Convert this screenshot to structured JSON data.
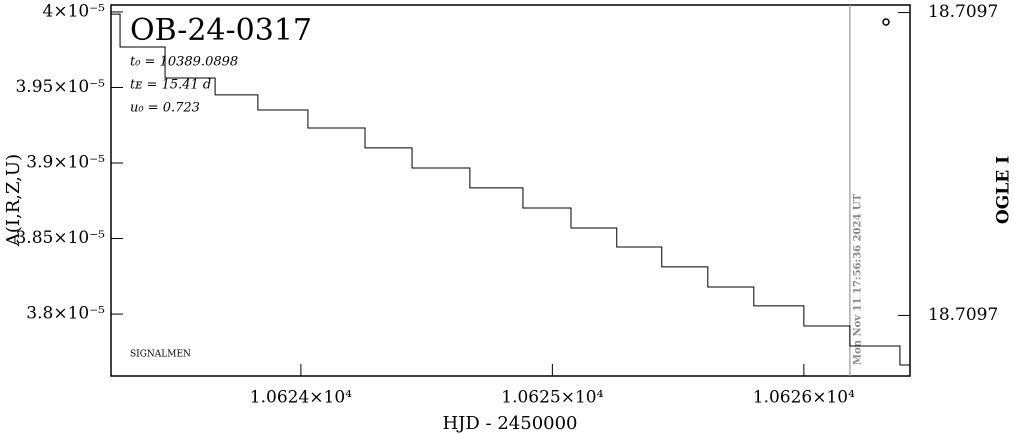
{
  "chart_data": {
    "type": "step",
    "title": "OB-24-0317",
    "annotations": [
      "t₀ = 10389.0898",
      "tᴇ = 15.41 d",
      "u₀ = 0.723"
    ],
    "footer": "SIGNALMEN",
    "xlabel": "HJD - 2450000",
    "ylabel": "A(I,R,Z,U)",
    "y2label": "OGLE I",
    "now_x": 10626.183,
    "now_label": "Mon Nov 11 17:56:36 2024 UT",
    "xlim": [
      10623.245,
      10626.422
    ],
    "xticks": [
      {
        "value": 10624,
        "label": "1.0624×10⁴"
      },
      {
        "value": 10625,
        "label": "1.0625×10⁴"
      },
      {
        "value": 10626,
        "label": "1.0626×10⁴"
      }
    ],
    "ylim": [
      3.759e-05,
      4.0046e-05
    ],
    "yticks": [
      {
        "value": 4e-05,
        "label": "4×10⁻⁵"
      },
      {
        "value": 3.95e-05,
        "label": "3.95×10⁻⁵"
      },
      {
        "value": 3.9e-05,
        "label": "3.9×10⁻⁵"
      },
      {
        "value": 3.85e-05,
        "label": "3.85×10⁻⁵"
      },
      {
        "value": 3.8e-05,
        "label": "3.8×10⁻⁵"
      }
    ],
    "y2lim": [
      18.709658,
      18.709756
    ],
    "y2ticks": [
      {
        "value": 18.70966,
        "label": "18.7097"
      },
      {
        "value": 18.70974,
        "label": "18.7097"
      }
    ],
    "series": [
      {
        "color": "#000000",
        "x": [
          10623.245,
          10623.281,
          10623.46,
          10623.659,
          10623.829,
          10624.028,
          10624.255,
          10624.442,
          10624.672,
          10624.883,
          10625.074,
          10625.256,
          10625.435,
          10625.618,
          10625.801,
          10626.0,
          10626.183,
          10626.382,
          10626.422
        ],
        "values": [
          3.9986e-05,
          3.9768e-05,
          3.9563e-05,
          3.9451e-05,
          3.9351e-05,
          3.9232e-05,
          3.91e-05,
          3.8967e-05,
          3.8835e-05,
          3.8702e-05,
          3.857e-05,
          3.8444e-05,
          3.8312e-05,
          3.8179e-05,
          3.8054e-05,
          3.7921e-05,
          3.7789e-05,
          3.7663e-05,
          3.7663e-05
        ]
      }
    ]
  }
}
